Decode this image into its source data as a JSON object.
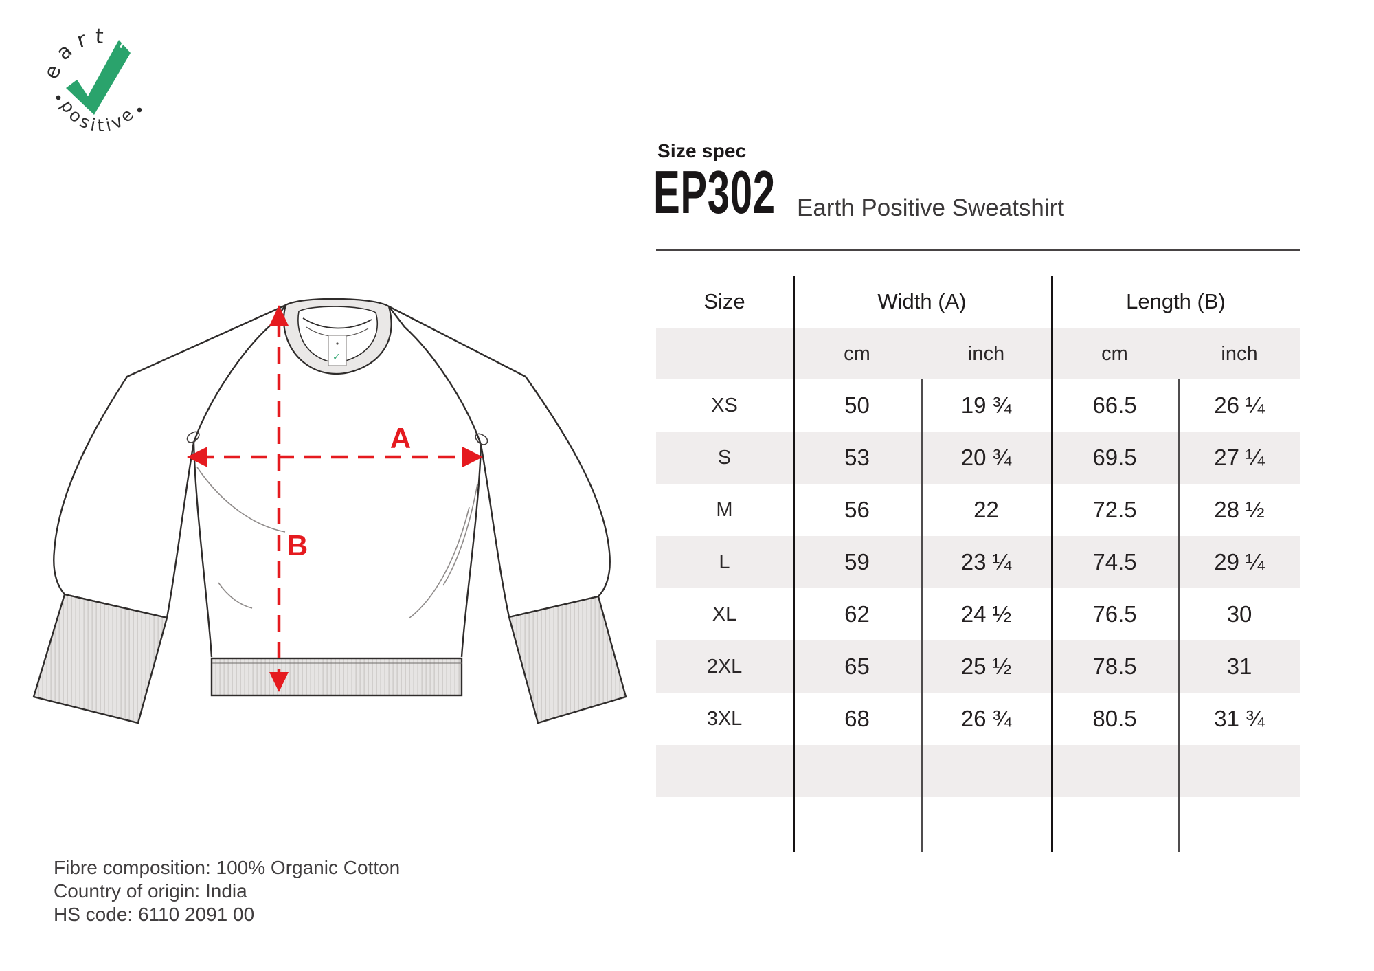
{
  "logo": {
    "top_text": "earth",
    "bottom_text": "positive",
    "check_color": "#2aa36c"
  },
  "header": {
    "eyebrow": "Size spec",
    "product_code": "EP302",
    "product_name": "Earth Positive Sweatshirt"
  },
  "diagram": {
    "label_a": "A",
    "label_b": "B",
    "dimension_color": "#e51a1f"
  },
  "table": {
    "col_size": "Size",
    "col_width": "Width (A)",
    "col_length": "Length (B)",
    "unit_cm": "cm",
    "unit_inch": "inch",
    "stripe_color": "#f0eded",
    "rows": [
      {
        "size": "XS",
        "width_cm": "50",
        "width_inch": "19 ¾",
        "length_cm": "66.5",
        "length_inch": "26 ¼"
      },
      {
        "size": "S",
        "width_cm": "53",
        "width_inch": "20 ¾",
        "length_cm": "69.5",
        "length_inch": "27 ¼"
      },
      {
        "size": "M",
        "width_cm": "56",
        "width_inch": "22",
        "length_cm": "72.5",
        "length_inch": "28 ½"
      },
      {
        "size": "L",
        "width_cm": "59",
        "width_inch": "23 ¼",
        "length_cm": "74.5",
        "length_inch": "29 ¼"
      },
      {
        "size": "XL",
        "width_cm": "62",
        "width_inch": "24 ½",
        "length_cm": "76.5",
        "length_inch": "30"
      },
      {
        "size": "2XL",
        "width_cm": "65",
        "width_inch": "25 ½",
        "length_cm": "78.5",
        "length_inch": "31"
      },
      {
        "size": "3XL",
        "width_cm": "68",
        "width_inch": "26 ¾",
        "length_cm": "80.5",
        "length_inch": "31 ¾"
      },
      {
        "size": "",
        "width_cm": "",
        "width_inch": "",
        "length_cm": "",
        "length_inch": ""
      },
      {
        "size": "",
        "width_cm": "",
        "width_inch": "",
        "length_cm": "",
        "length_inch": ""
      }
    ]
  },
  "footer": {
    "line1": "Fibre composition: 100% Organic Cotton",
    "line2": "Country of origin: India",
    "line3": "HS code: 6110 2091 00"
  }
}
